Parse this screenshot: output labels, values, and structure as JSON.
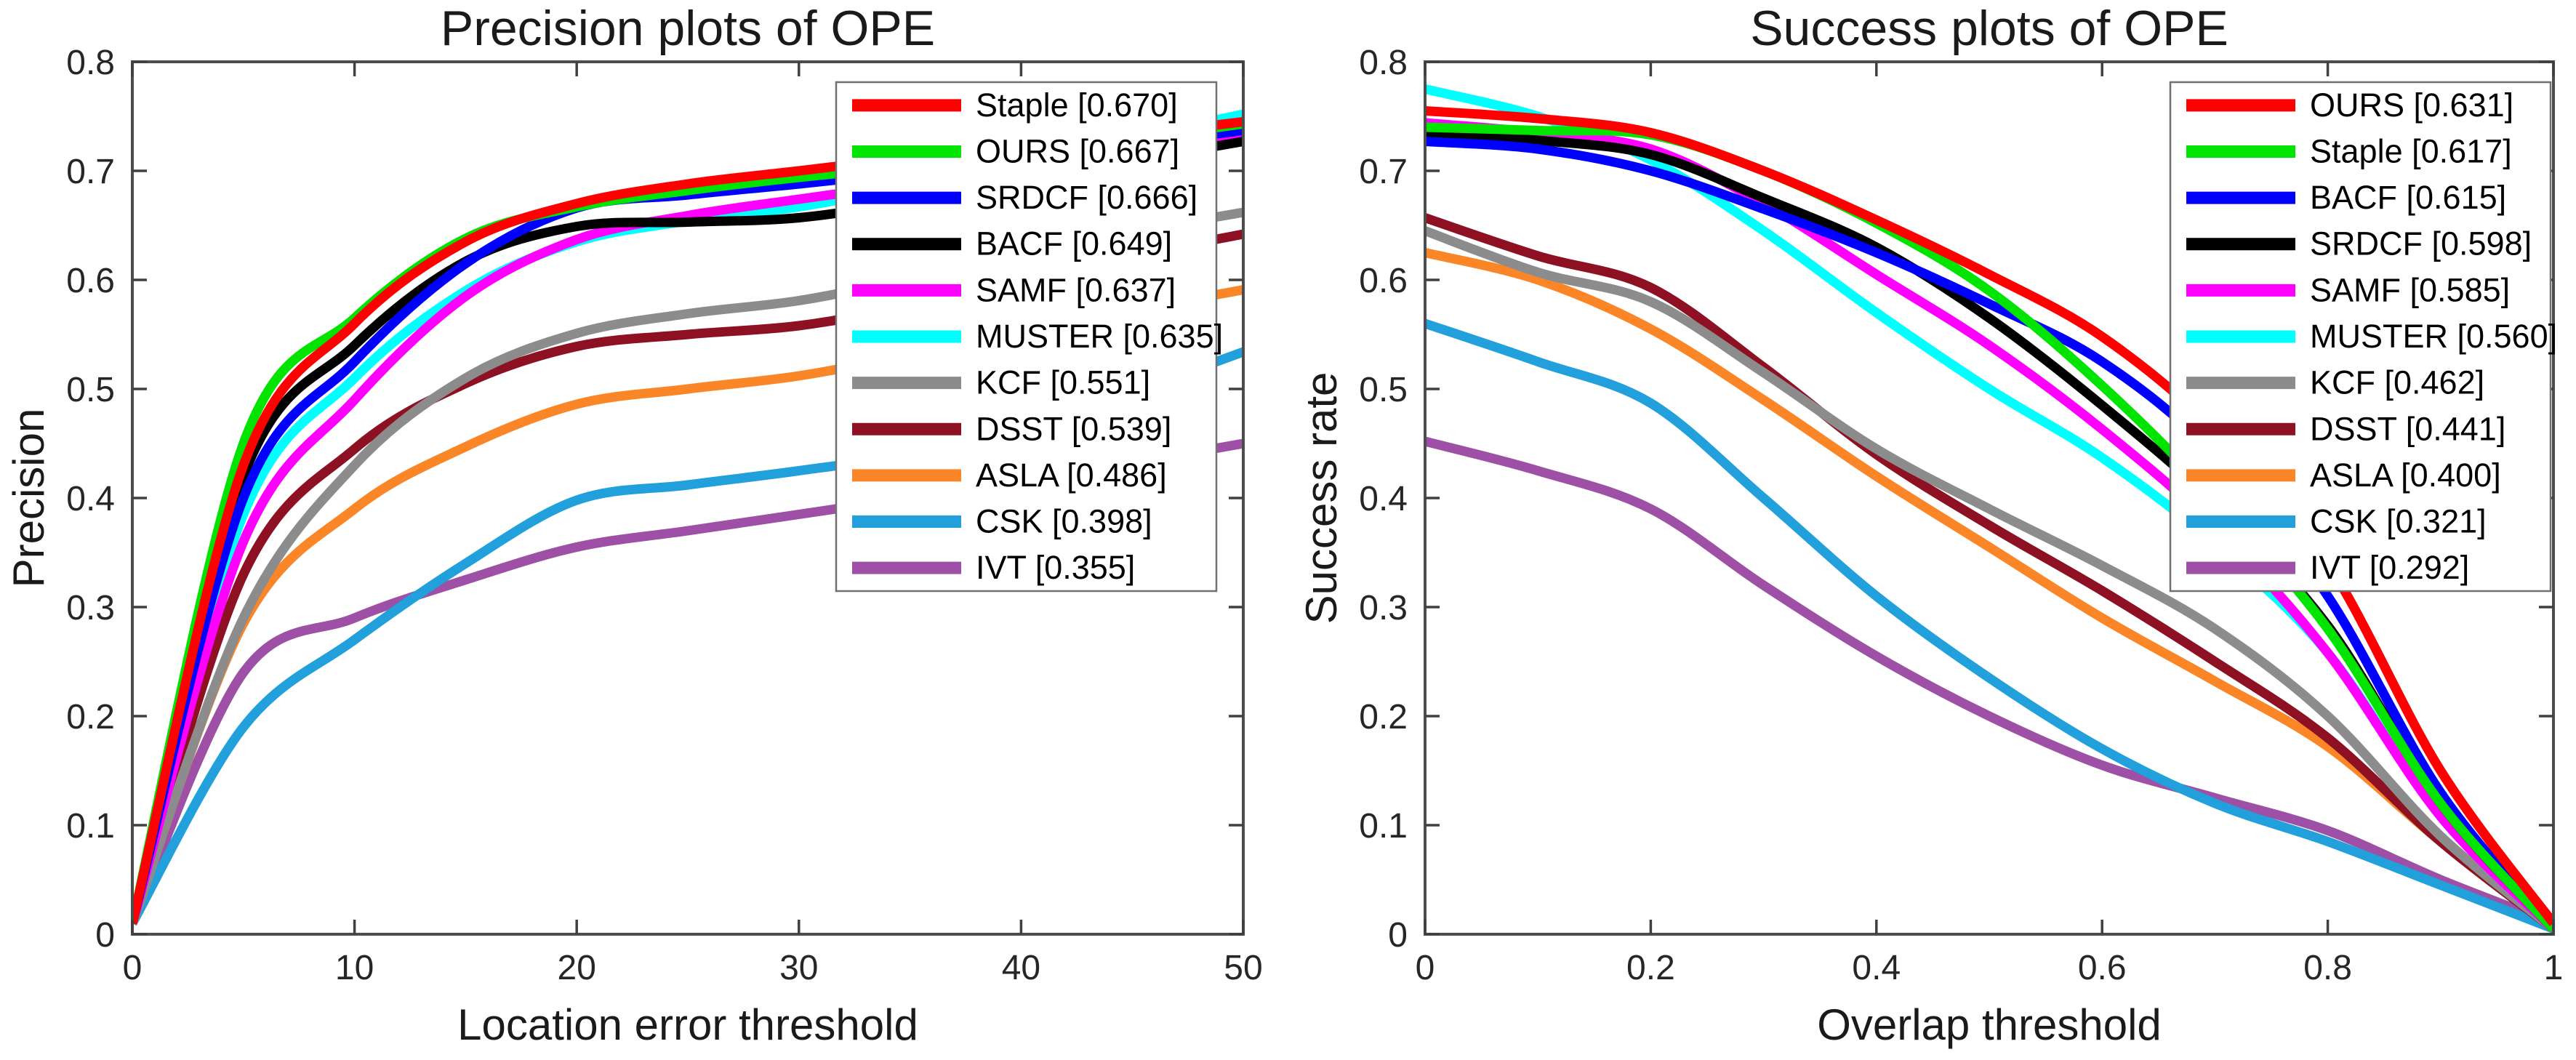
{
  "figure": {
    "background": "#ffffff",
    "kind": "matlab-style benchmark figure, two line charts side by side"
  },
  "chart_data": [
    {
      "type": "line",
      "title": "Precision plots of OPE",
      "xlabel": "Location error threshold",
      "ylabel": "Precision",
      "xlim": [
        0,
        50
      ],
      "ylim": [
        0,
        0.8
      ],
      "grid": false,
      "legend_position": "top-right",
      "xtick_values": [
        0,
        10,
        20,
        30,
        40,
        50
      ],
      "xtick_labels": [
        "0",
        "10",
        "20",
        "30",
        "40",
        "50"
      ],
      "ytick_values": [
        0,
        0.1,
        0.2,
        0.3,
        0.4,
        0.5,
        0.6,
        0.7,
        0.8
      ],
      "ytick_labels": [
        "0",
        "0.1",
        "0.2",
        "0.3",
        "0.4",
        "0.5",
        "0.6",
        "0.7",
        "0.8"
      ],
      "x": [
        0,
        5,
        10,
        15,
        20,
        25,
        30,
        35,
        40,
        45,
        50
      ],
      "legend": [
        {
          "label": "Staple [0.670]"
        },
        {
          "label": "OURS [0.667]"
        },
        {
          "label": "SRDCF [0.666]"
        },
        {
          "label": "BACF [0.649]"
        },
        {
          "label": "SAMF [0.637]"
        },
        {
          "label": "MUSTER [0.635]"
        },
        {
          "label": "KCF [0.551]"
        },
        {
          "label": "DSST [0.539]"
        },
        {
          "label": "ASLA [0.486]"
        },
        {
          "label": "CSK [0.398]"
        },
        {
          "label": "IVT [0.355]"
        }
      ],
      "series": [
        {
          "name": "Staple",
          "score": 0.67,
          "color": "#FF0000",
          "values": [
            0.01,
            0.43,
            0.56,
            0.635,
            0.67,
            0.688,
            0.7,
            0.712,
            0.722,
            0.733,
            0.745
          ]
        },
        {
          "name": "OURS",
          "score": 0.667,
          "color": "#00E400",
          "values": [
            0.01,
            0.45,
            0.565,
            0.638,
            0.667,
            0.682,
            0.694,
            0.704,
            0.715,
            0.729,
            0.743
          ]
        },
        {
          "name": "SRDCF",
          "score": 0.666,
          "color": "#0000FF",
          "values": [
            0.01,
            0.4,
            0.525,
            0.615,
            0.666,
            0.678,
            0.688,
            0.699,
            0.71,
            0.724,
            0.737
          ]
        },
        {
          "name": "BACF",
          "score": 0.649,
          "color": "#000000",
          "values": [
            0.01,
            0.42,
            0.54,
            0.617,
            0.649,
            0.653,
            0.657,
            0.672,
            0.69,
            0.709,
            0.727
          ]
        },
        {
          "name": "SAMF",
          "score": 0.637,
          "color": "#FF00FF",
          "values": [
            0.01,
            0.36,
            0.49,
            0.585,
            0.637,
            0.659,
            0.674,
            0.688,
            0.701,
            0.716,
            0.731
          ]
        },
        {
          "name": "MUSTER",
          "score": 0.635,
          "color": "#00FFFF",
          "values": [
            0.01,
            0.385,
            0.51,
            0.59,
            0.635,
            0.654,
            0.667,
            0.686,
            0.707,
            0.73,
            0.752
          ]
        },
        {
          "name": "KCF",
          "score": 0.551,
          "color": "#8C8C8C",
          "values": [
            0.01,
            0.29,
            0.43,
            0.51,
            0.551,
            0.569,
            0.581,
            0.601,
            0.623,
            0.644,
            0.662
          ]
        },
        {
          "name": "DSST",
          "score": 0.539,
          "color": "#8E1023",
          "values": [
            0.01,
            0.33,
            0.445,
            0.505,
            0.539,
            0.55,
            0.558,
            0.576,
            0.599,
            0.622,
            0.642
          ]
        },
        {
          "name": "ASLA",
          "score": 0.486,
          "color": "#FA8628",
          "values": [
            0.01,
            0.285,
            0.39,
            0.447,
            0.486,
            0.5,
            0.512,
            0.531,
            0.551,
            0.572,
            0.591
          ]
        },
        {
          "name": "CSK",
          "score": 0.398,
          "color": "#22A0DC",
          "values": [
            0.01,
            0.19,
            0.27,
            0.34,
            0.398,
            0.412,
            0.425,
            0.44,
            0.462,
            0.497,
            0.534
          ]
        },
        {
          "name": "IVT",
          "score": 0.355,
          "color": "#9D50A5",
          "values": [
            0.01,
            0.24,
            0.29,
            0.325,
            0.355,
            0.37,
            0.385,
            0.4,
            0.415,
            0.432,
            0.45
          ]
        }
      ]
    },
    {
      "type": "line",
      "title": "Success plots of OPE",
      "xlabel": "Overlap threshold",
      "ylabel": "Success rate",
      "xlim": [
        0,
        1
      ],
      "ylim": [
        0,
        0.8
      ],
      "grid": false,
      "legend_position": "top-right",
      "xtick_values": [
        0,
        0.2,
        0.4,
        0.6,
        0.8,
        1
      ],
      "xtick_labels": [
        "0",
        "0.2",
        "0.4",
        "0.6",
        "0.8",
        "1"
      ],
      "ytick_values": [
        0,
        0.1,
        0.2,
        0.3,
        0.4,
        0.5,
        0.6,
        0.7,
        0.8
      ],
      "ytick_labels": [
        "0",
        "0.1",
        "0.2",
        "0.3",
        "0.4",
        "0.5",
        "0.6",
        "0.7",
        "0.8"
      ],
      "x": [
        0,
        0.1,
        0.2,
        0.3,
        0.4,
        0.5,
        0.6,
        0.7,
        0.8,
        0.9,
        1.0
      ],
      "legend": [
        {
          "label": "OURS [0.631]"
        },
        {
          "label": "Staple [0.617]"
        },
        {
          "label": "BACF [0.615]"
        },
        {
          "label": "SRDCF [0.598]"
        },
        {
          "label": "SAMF [0.585]"
        },
        {
          "label": "MUSTER [0.560]"
        },
        {
          "label": "KCF [0.462]"
        },
        {
          "label": "DSST [0.441]"
        },
        {
          "label": "ASLA [0.400]"
        },
        {
          "label": "CSK [0.321]"
        },
        {
          "label": "IVT [0.292]"
        }
      ],
      "series": [
        {
          "name": "OURS",
          "score": 0.631,
          "color": "#FF0000",
          "values": [
            0.755,
            0.748,
            0.735,
            0.7,
            0.655,
            0.605,
            0.548,
            0.462,
            0.34,
            0.15,
            0.01
          ]
        },
        {
          "name": "Staple",
          "score": 0.617,
          "color": "#00E400",
          "values": [
            0.74,
            0.737,
            0.733,
            0.7,
            0.652,
            0.59,
            0.503,
            0.4,
            0.28,
            0.12,
            0.005
          ]
        },
        {
          "name": "BACF",
          "score": 0.615,
          "color": "#0000FF",
          "values": [
            0.727,
            0.72,
            0.7,
            0.665,
            0.625,
            0.578,
            0.525,
            0.44,
            0.31,
            0.13,
            0.005
          ]
        },
        {
          "name": "SRDCF",
          "score": 0.598,
          "color": "#000000",
          "values": [
            0.735,
            0.728,
            0.715,
            0.675,
            0.63,
            0.565,
            0.485,
            0.395,
            0.283,
            0.12,
            0.005
          ]
        },
        {
          "name": "SAMF",
          "score": 0.585,
          "color": "#FF00FF",
          "values": [
            0.744,
            0.735,
            0.72,
            0.67,
            0.605,
            0.54,
            0.463,
            0.373,
            0.258,
            0.108,
            0.005
          ]
        },
        {
          "name": "MUSTER",
          "score": 0.56,
          "color": "#00FFFF",
          "values": [
            0.775,
            0.75,
            0.71,
            0.645,
            0.57,
            0.5,
            0.437,
            0.358,
            0.258,
            0.108,
            0.005
          ]
        },
        {
          "name": "KCF",
          "score": 0.462,
          "color": "#8C8C8C",
          "values": [
            0.645,
            0.607,
            0.58,
            0.515,
            0.445,
            0.39,
            0.338,
            0.28,
            0.2,
            0.09,
            0.005
          ]
        },
        {
          "name": "DSST",
          "score": 0.441,
          "color": "#8E1023",
          "values": [
            0.657,
            0.622,
            0.593,
            0.52,
            0.44,
            0.375,
            0.315,
            0.25,
            0.18,
            0.085,
            0.005
          ]
        },
        {
          "name": "ASLA",
          "score": 0.4,
          "color": "#FA8628",
          "values": [
            0.625,
            0.6,
            0.555,
            0.49,
            0.42,
            0.355,
            0.29,
            0.232,
            0.172,
            0.085,
            0.005
          ]
        },
        {
          "name": "CSK",
          "score": 0.321,
          "color": "#22A0DC",
          "values": [
            0.56,
            0.525,
            0.487,
            0.4,
            0.31,
            0.235,
            0.17,
            0.12,
            0.085,
            0.045,
            0.005
          ]
        },
        {
          "name": "IVT",
          "score": 0.292,
          "color": "#9D50A5",
          "values": [
            0.452,
            0.425,
            0.39,
            0.32,
            0.255,
            0.2,
            0.155,
            0.125,
            0.095,
            0.05,
            0.01
          ]
        }
      ]
    }
  ]
}
